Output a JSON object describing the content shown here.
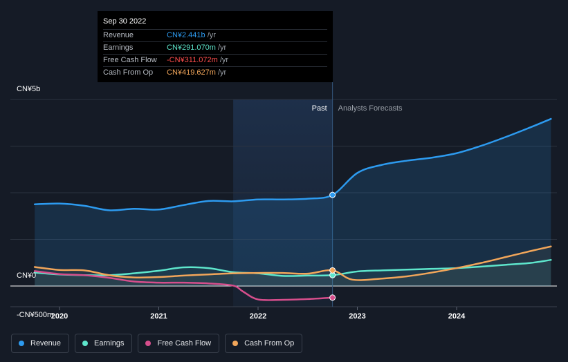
{
  "tooltip": {
    "date": "Sep 30 2022",
    "rows": [
      {
        "label": "Revenue",
        "value": "CN¥2.441b",
        "unit": " /yr",
        "color": "#2d9bf0"
      },
      {
        "label": "Earnings",
        "value": "CN¥291.070m",
        "unit": " /yr",
        "color": "#5ee6cc"
      },
      {
        "label": "Free Cash Flow",
        "value": "-CN¥311.072m",
        "unit": " /yr",
        "color": "#ff4d4d"
      },
      {
        "label": "Cash From Op",
        "value": "CN¥419.627m",
        "unit": " /yr",
        "color": "#f2a65a"
      }
    ]
  },
  "legend": [
    {
      "label": "Revenue",
      "color": "#2d9bf0"
    },
    {
      "label": "Earnings",
      "color": "#5ee6cc"
    },
    {
      "label": "Free Cash Flow",
      "color": "#d64e8c"
    },
    {
      "label": "Cash From Op",
      "color": "#f2a65a"
    }
  ],
  "chart_data": {
    "type": "line",
    "ylabels": [
      "CN¥5b",
      "CN¥0",
      "-CN¥500m"
    ],
    "past_label": "Past",
    "forecast_label": "Analysts Forecasts",
    "xticks": [
      {
        "year": 2020,
        "label": "2020"
      },
      {
        "year": 2021,
        "label": "2021"
      },
      {
        "year": 2022,
        "label": "2022"
      },
      {
        "year": 2023,
        "label": "2023"
      },
      {
        "year": 2024,
        "label": "2024"
      }
    ],
    "ylim": [
      -500,
      5000
    ],
    "divider_x": 2022.75,
    "highlight_range": [
      2021.75,
      2022.75
    ],
    "series": [
      {
        "name": "Revenue",
        "color": "#2d9bf0",
        "fill": true,
        "x": [
          2019.75,
          2020.0,
          2020.25,
          2020.5,
          2020.75,
          2021.0,
          2021.25,
          2021.5,
          2021.75,
          2022.0,
          2022.25,
          2022.5,
          2022.75,
          2023.0,
          2023.25,
          2023.5,
          2023.75,
          2024.0,
          2024.25,
          2024.5,
          2024.75,
          2024.95
        ],
        "y": [
          2190,
          2210,
          2150,
          2030,
          2070,
          2050,
          2170,
          2280,
          2270,
          2320,
          2320,
          2340,
          2441,
          3030,
          3250,
          3360,
          3440,
          3560,
          3760,
          4000,
          4260,
          4480
        ]
      },
      {
        "name": "Earnings",
        "color": "#5ee6cc",
        "fill": false,
        "x": [
          2019.75,
          2020.0,
          2020.25,
          2020.5,
          2020.75,
          2021.0,
          2021.25,
          2021.5,
          2021.75,
          2022.0,
          2022.25,
          2022.5,
          2022.75,
          2023.0,
          2023.25,
          2023.5,
          2023.75,
          2024.0,
          2024.25,
          2024.5,
          2024.75,
          2024.95
        ],
        "y": [
          360,
          310,
          290,
          290,
          340,
          410,
          500,
          480,
          370,
          340,
          270,
          280,
          291,
          390,
          420,
          440,
          460,
          480,
          520,
          570,
          620,
          700
        ]
      },
      {
        "name": "Free Cash Flow",
        "color": "#d64e8c",
        "fill": false,
        "x": [
          2019.75,
          2020.0,
          2020.25,
          2020.5,
          2020.75,
          2021.0,
          2021.25,
          2021.5,
          2021.75,
          2021.85,
          2022.0,
          2022.25,
          2022.5,
          2022.75
        ],
        "y": [
          400,
          320,
          290,
          220,
          120,
          90,
          90,
          70,
          10,
          -150,
          -360,
          -370,
          -350,
          -311
        ]
      },
      {
        "name": "Cash From Op",
        "color": "#f2a65a",
        "fill": false,
        "x": [
          2019.75,
          2020.0,
          2020.25,
          2020.5,
          2020.75,
          2021.0,
          2021.25,
          2021.5,
          2021.75,
          2022.0,
          2022.25,
          2022.5,
          2022.75,
          2022.95,
          2023.25,
          2023.5,
          2023.75,
          2024.0,
          2024.25,
          2024.5,
          2024.75,
          2024.95
        ],
        "y": [
          510,
          430,
          420,
          290,
          230,
          240,
          280,
          310,
          340,
          350,
          350,
          330,
          420,
          170,
          200,
          260,
          360,
          480,
          620,
          780,
          940,
          1060
        ]
      }
    ]
  }
}
